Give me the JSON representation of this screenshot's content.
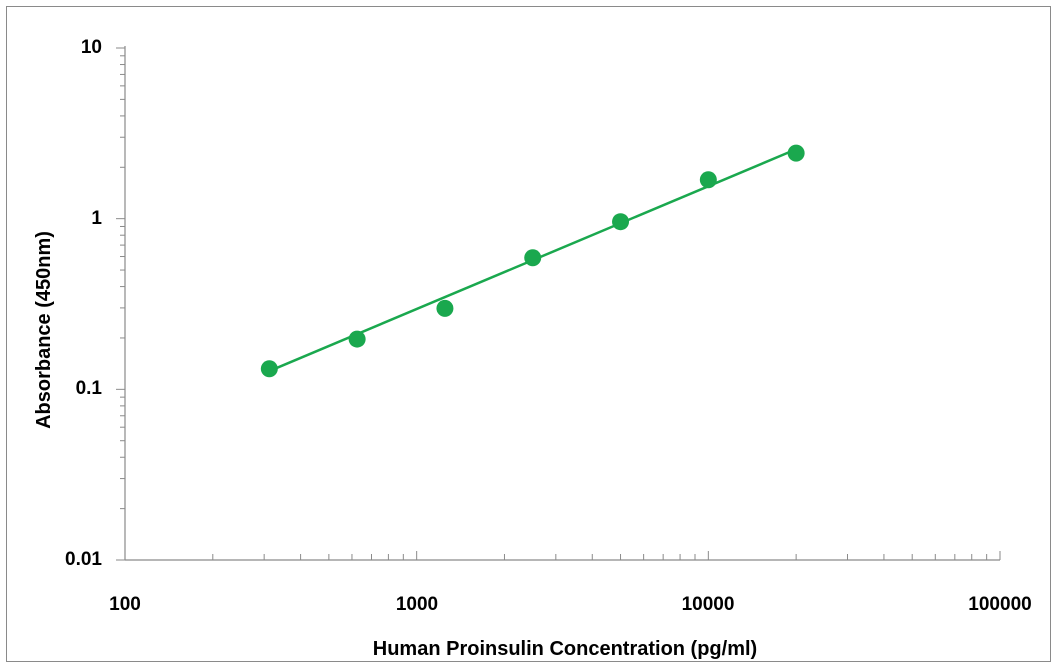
{
  "chart_data": {
    "type": "scatter",
    "title": "",
    "xlabel": "Human Proinsulin Concentration (pg/ml)",
    "ylabel": "Absorbance (450nm)",
    "xscale": "log",
    "yscale": "log",
    "xlim": [
      100,
      100000
    ],
    "ylim": [
      0.01,
      10
    ],
    "x_tick_labels": [
      "100",
      "1000",
      "10000",
      "100000"
    ],
    "y_tick_labels": [
      "0.01",
      "0.1",
      "1",
      "10"
    ],
    "grid": false,
    "legend": "none",
    "marker_color": "#1aa84e",
    "line_color": "#1aa84e",
    "series": [
      {
        "x": [
          312.5,
          625,
          1250,
          2500,
          5000,
          10000,
          20000
        ],
        "y": [
          0.132,
          0.197,
          0.298,
          0.59,
          0.96,
          1.69,
          2.42
        ]
      }
    ],
    "trendline": {
      "type": "power",
      "x": [
        312.5,
        20000
      ],
      "y": [
        0.128,
        2.55
      ]
    }
  }
}
